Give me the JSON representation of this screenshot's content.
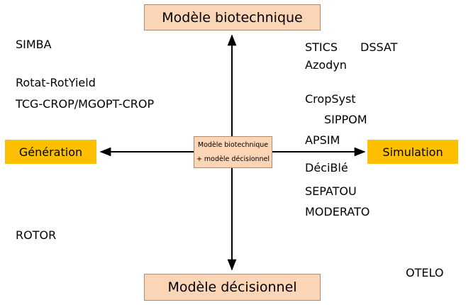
{
  "boxes": {
    "top": "Modèle biotechnique",
    "bottom": "Modèle décisionnel",
    "left": "Génération",
    "right": "Simulation",
    "center_line1": "Modèle biotechnique",
    "center_line2": "+ modèle décisionnel"
  },
  "models": {
    "simba": "SIMBA",
    "rotat": "Rotat-RotYield",
    "tcg": "TCG-CROP/MGOPT-CROP",
    "rotor": "ROTOR",
    "stics": "STICS",
    "dssat": "DSSAT",
    "azodyn": "Azodyn",
    "cropsyst": "CropSyst",
    "sippom": "SIPPOM",
    "apsim": "APSIM",
    "decible": "DéciBlé",
    "sepatou": "SEPATOU",
    "moderato": "MODERATO",
    "otelo": "OTELO"
  },
  "colors": {
    "peach": "#fbd5b5",
    "gold": "#fdbf00",
    "arrow": "#000000"
  }
}
